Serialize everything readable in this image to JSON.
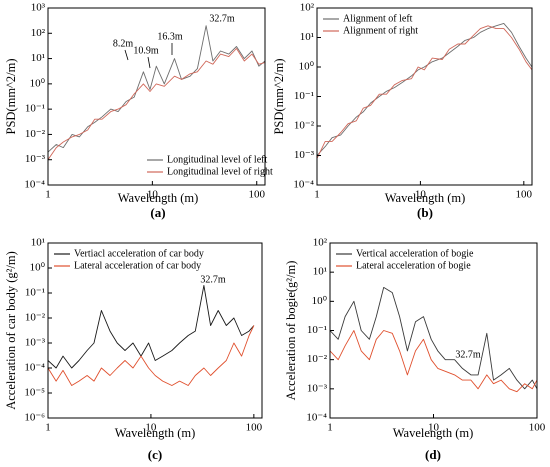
{
  "chart_data": [
    {
      "type": "line",
      "caption": "(a)",
      "xlabel": "Wavelength (m)",
      "ylabel": "PSD(mm^2/m)",
      "xlog": true,
      "ylog": true,
      "legend": "lower right",
      "xlim": [
        1,
        120
      ],
      "ylim": [
        0.0001,
        1000
      ],
      "xticks": [
        1,
        10,
        100
      ],
      "yticks": [
        {
          "value": 0.0001,
          "label": "10⁻⁴"
        },
        {
          "value": 0.001,
          "label": "10⁻³"
        },
        {
          "value": 0.01,
          "label": "10⁻²"
        },
        {
          "value": 0.1,
          "label": "10⁻¹"
        },
        {
          "value": 1,
          "label": "10⁰"
        },
        {
          "value": 10,
          "label": "10¹"
        },
        {
          "value": 100,
          "label": "10²"
        },
        {
          "value": 1000,
          "label": "10³"
        }
      ],
      "annotations": [
        "8.2m",
        "10.9m",
        "16.3m",
        "32.7m"
      ],
      "x": [
        1,
        1.2,
        1.4,
        1.7,
        2,
        2.4,
        2.8,
        3.3,
        4,
        4.7,
        5.6,
        6.7,
        8.2,
        9.5,
        10.9,
        13,
        16.3,
        19,
        23,
        27,
        32.7,
        38,
        45,
        54,
        64,
        76,
        90,
        105,
        120
      ],
      "series": [
        {
          "name": "Longitudinal level of left",
          "color": "#6e6e6e",
          "values": [
            0.002,
            0.004,
            0.003,
            0.01,
            0.008,
            0.02,
            0.03,
            0.05,
            0.1,
            0.08,
            0.2,
            0.3,
            3,
            0.6,
            5,
            1,
            10,
            1.5,
            2,
            4,
            200,
            8,
            20,
            15,
            30,
            10,
            20,
            5,
            8
          ]
        },
        {
          "name": "Longitudinal level of right",
          "color": "#d0685a",
          "values": [
            0.001,
            0.003,
            0.005,
            0.008,
            0.01,
            0.015,
            0.04,
            0.04,
            0.08,
            0.1,
            0.15,
            0.4,
            1,
            0.5,
            1,
            0.8,
            2,
            1.5,
            2.5,
            3,
            8,
            6,
            15,
            12,
            25,
            8,
            15,
            6,
            7
          ]
        }
      ]
    },
    {
      "type": "line",
      "caption": "(b)",
      "xlabel": "Wavelength (m)",
      "ylabel": "PSD(mm^2/m)",
      "xlog": true,
      "ylog": true,
      "legend": "upper left",
      "xlim": [
        1,
        120
      ],
      "ylim": [
        0.0001,
        100
      ],
      "xticks": [
        1,
        10,
        100
      ],
      "yticks": [
        {
          "value": 0.0001,
          "label": "10⁻⁴"
        },
        {
          "value": 0.001,
          "label": "10⁻³"
        },
        {
          "value": 0.01,
          "label": "10⁻²"
        },
        {
          "value": 0.1,
          "label": "10⁻¹"
        },
        {
          "value": 1,
          "label": "10⁰"
        },
        {
          "value": 10,
          "label": "10¹"
        },
        {
          "value": 100,
          "label": "10²"
        }
      ],
      "x": [
        1,
        1.2,
        1.4,
        1.7,
        2,
        2.4,
        2.8,
        3.3,
        4,
        4.7,
        5.6,
        6.7,
        8.2,
        9.5,
        10.9,
        13,
        16.3,
        19,
        23,
        27,
        32.7,
        38,
        45,
        54,
        64,
        76,
        90,
        105,
        120
      ],
      "series": [
        {
          "name": "Alignment of left",
          "color": "#6e6e6e",
          "values": [
            0.001,
            0.002,
            0.004,
            0.005,
            0.01,
            0.02,
            0.03,
            0.06,
            0.1,
            0.15,
            0.2,
            0.3,
            0.5,
            0.8,
            1,
            1.5,
            2,
            3,
            5,
            8,
            10,
            15,
            20,
            25,
            30,
            15,
            5,
            2,
            1
          ]
        },
        {
          "name": "Alignment of right",
          "color": "#d0685a",
          "values": [
            0.0008,
            0.003,
            0.003,
            0.006,
            0.012,
            0.015,
            0.04,
            0.05,
            0.12,
            0.12,
            0.25,
            0.35,
            0.4,
            1,
            0.8,
            2,
            1.8,
            4,
            6,
            6,
            12,
            20,
            25,
            20,
            20,
            10,
            4,
            1.5,
            0.8
          ]
        }
      ]
    },
    {
      "type": "line",
      "caption": "(c)",
      "xlabel": "Wavelength (m)",
      "ylabel": "Acceleration of car body (g²/m)",
      "xlog": true,
      "ylog": true,
      "legend": "upper left",
      "xlim": [
        1,
        120
      ],
      "ylim": [
        1e-06,
        10
      ],
      "xticks": [
        1,
        10,
        100
      ],
      "yticks": [
        {
          "value": 1e-06,
          "label": "10⁻⁶"
        },
        {
          "value": 1e-05,
          "label": "10⁻⁵"
        },
        {
          "value": 0.0001,
          "label": "10⁻⁴"
        },
        {
          "value": 0.001,
          "label": "10⁻³"
        },
        {
          "value": 0.01,
          "label": "10⁻²"
        },
        {
          "value": 0.1,
          "label": "10⁻¹"
        },
        {
          "value": 1,
          "label": "10⁰"
        },
        {
          "value": 10,
          "label": "10¹"
        }
      ],
      "annotations": [
        "32.7m"
      ],
      "x": [
        1,
        1.2,
        1.4,
        1.7,
        2,
        2.4,
        2.8,
        3.3,
        4,
        4.7,
        5.6,
        6.7,
        8,
        9.5,
        11,
        13,
        16,
        19,
        23,
        27,
        32.7,
        38,
        45,
        54,
        64,
        76,
        90,
        100
      ],
      "series": [
        {
          "name": "Vertiacl acceleration of car body",
          "color": "#1a1a1a",
          "values": [
            0.0002,
            0.0001,
            0.0003,
            0.0001,
            0.0002,
            0.0005,
            0.001,
            0.02,
            0.003,
            0.001,
            0.0005,
            0.001,
            0.0003,
            0.001,
            0.0002,
            0.0003,
            0.0005,
            0.001,
            0.002,
            0.003,
            0.2,
            0.005,
            0.02,
            0.005,
            0.01,
            0.002,
            0.003,
            0.005
          ]
        },
        {
          "name": "Lateral acceleration of car body",
          "color": "#e0502e",
          "values": [
            0.0001,
            3e-05,
            8e-05,
            2e-05,
            3e-05,
            5e-05,
            3e-05,
            0.0001,
            5e-05,
            0.0001,
            0.0002,
            0.0001,
            0.0003,
            0.0001,
            5e-05,
            3e-05,
            2e-05,
            3e-05,
            2e-05,
            5e-05,
            0.0001,
            5e-05,
            0.0001,
            0.0002,
            0.001,
            0.0003,
            0.002,
            0.005
          ]
        }
      ]
    },
    {
      "type": "line",
      "caption": "(d)",
      "xlabel": "Wavelength (m)",
      "ylabel": "Acceleration of bogie(g²/m)",
      "xlog": true,
      "ylog": true,
      "legend": "upper left",
      "xlim": [
        1,
        100
      ],
      "ylim": [
        0.0001,
        100
      ],
      "xticks": [
        1,
        10,
        100
      ],
      "yticks": [
        {
          "value": 0.0001,
          "label": "10⁻⁴"
        },
        {
          "value": 0.001,
          "label": "10⁻³"
        },
        {
          "value": 0.01,
          "label": "10⁻²"
        },
        {
          "value": 0.1,
          "label": "10⁻¹"
        },
        {
          "value": 1,
          "label": "10⁰"
        },
        {
          "value": 10,
          "label": "10¹"
        },
        {
          "value": 100,
          "label": "10²"
        }
      ],
      "annotations": [
        "32.7m"
      ],
      "x": [
        1,
        1.2,
        1.4,
        1.7,
        2,
        2.4,
        2.8,
        3.3,
        4,
        4.7,
        5.6,
        6.7,
        8,
        9.5,
        11,
        13,
        16,
        19,
        23,
        27,
        32.7,
        38,
        45,
        54,
        64,
        76,
        90,
        100
      ],
      "series": [
        {
          "name": "Vertical acceleration of bogie",
          "color": "#3a3a3a",
          "values": [
            0.1,
            0.05,
            0.3,
            1,
            0.1,
            0.05,
            0.3,
            3,
            2,
            0.3,
            0.02,
            0.2,
            0.3,
            0.05,
            0.02,
            0.01,
            0.01,
            0.005,
            0.003,
            0.003,
            0.08,
            0.002,
            0.003,
            0.005,
            0.002,
            0.001,
            0.002,
            0.001
          ]
        },
        {
          "name": "Lateral acceleration of bogie",
          "color": "#e0502e",
          "values": [
            0.02,
            0.01,
            0.03,
            0.1,
            0.02,
            0.01,
            0.05,
            0.1,
            0.08,
            0.02,
            0.003,
            0.02,
            0.05,
            0.01,
            0.005,
            0.004,
            0.003,
            0.002,
            0.002,
            0.001,
            0.003,
            0.0015,
            0.002,
            0.001,
            0.0008,
            0.0015,
            0.001,
            0.002
          ]
        }
      ]
    }
  ]
}
